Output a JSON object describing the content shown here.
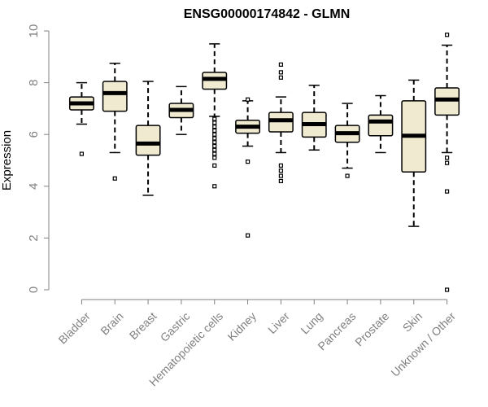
{
  "chart_data": {
    "type": "box",
    "title": "ENSG00000174842 - GLMN",
    "ylabel": "Expression",
    "xlabel": "",
    "ylim": [
      0,
      10
    ],
    "yticks": [
      0,
      2,
      4,
      6,
      8,
      10
    ],
    "grid": false,
    "colors": {
      "box_fill": "#f0ead0",
      "box_stroke": "#000000",
      "median": "#000000",
      "axis": "#808080",
      "tick_text": "#808080"
    },
    "categories": [
      "Bladder",
      "Brain",
      "Breast",
      "Gastric",
      "Hematopoietic cells",
      "Kidney",
      "Liver",
      "Lung",
      "Pancreas",
      "Prostate",
      "Skin",
      "Unknown / Other"
    ],
    "boxes": [
      {
        "category": "Bladder",
        "whisker_low": 6.4,
        "q1": 6.95,
        "median": 7.2,
        "q3": 7.45,
        "whisker_high": 8.0,
        "outliers": [
          5.25
        ]
      },
      {
        "category": "Brain",
        "whisker_low": 5.3,
        "q1": 6.9,
        "median": 7.6,
        "q3": 8.05,
        "whisker_high": 8.75,
        "outliers": [
          4.3
        ]
      },
      {
        "category": "Breast",
        "whisker_low": 3.65,
        "q1": 5.2,
        "median": 5.65,
        "q3": 6.35,
        "whisker_high": 8.05,
        "outliers": []
      },
      {
        "category": "Gastric",
        "whisker_low": 6.0,
        "q1": 6.65,
        "median": 6.95,
        "q3": 7.2,
        "whisker_high": 7.85,
        "outliers": []
      },
      {
        "category": "Hematopoietic cells",
        "whisker_low": 6.7,
        "q1": 7.75,
        "median": 8.15,
        "q3": 8.4,
        "whisker_high": 9.5,
        "outliers": [
          4.0,
          4.8,
          5.1,
          5.25,
          5.4,
          5.55,
          5.7,
          5.85,
          6.0,
          6.15,
          6.3,
          6.45,
          6.6
        ]
      },
      {
        "category": "Kidney",
        "whisker_low": 5.55,
        "q1": 6.05,
        "median": 6.3,
        "q3": 6.55,
        "whisker_high": 7.3,
        "outliers": [
          2.1,
          4.95,
          7.35
        ]
      },
      {
        "category": "Liver",
        "whisker_low": 5.3,
        "q1": 6.1,
        "median": 6.55,
        "q3": 6.85,
        "whisker_high": 7.45,
        "outliers": [
          4.2,
          4.4,
          4.6,
          4.8,
          8.2,
          8.4,
          8.7
        ]
      },
      {
        "category": "Lung",
        "whisker_low": 5.4,
        "q1": 5.9,
        "median": 6.4,
        "q3": 6.85,
        "whisker_high": 7.9,
        "outliers": []
      },
      {
        "category": "Pancreas",
        "whisker_low": 4.7,
        "q1": 5.7,
        "median": 6.05,
        "q3": 6.35,
        "whisker_high": 7.2,
        "outliers": [
          4.4
        ]
      },
      {
        "category": "Prostate",
        "whisker_low": 5.3,
        "q1": 5.95,
        "median": 6.5,
        "q3": 6.75,
        "whisker_high": 7.5,
        "outliers": []
      },
      {
        "category": "Skin",
        "whisker_low": 2.45,
        "q1": 4.55,
        "median": 5.95,
        "q3": 7.3,
        "whisker_high": 8.1,
        "outliers": []
      },
      {
        "category": "Unknown / Other",
        "whisker_low": 5.3,
        "q1": 6.75,
        "median": 7.35,
        "q3": 7.8,
        "whisker_high": 9.45,
        "outliers": [
          0.0,
          3.8,
          4.9,
          5.1,
          9.85
        ]
      }
    ]
  }
}
